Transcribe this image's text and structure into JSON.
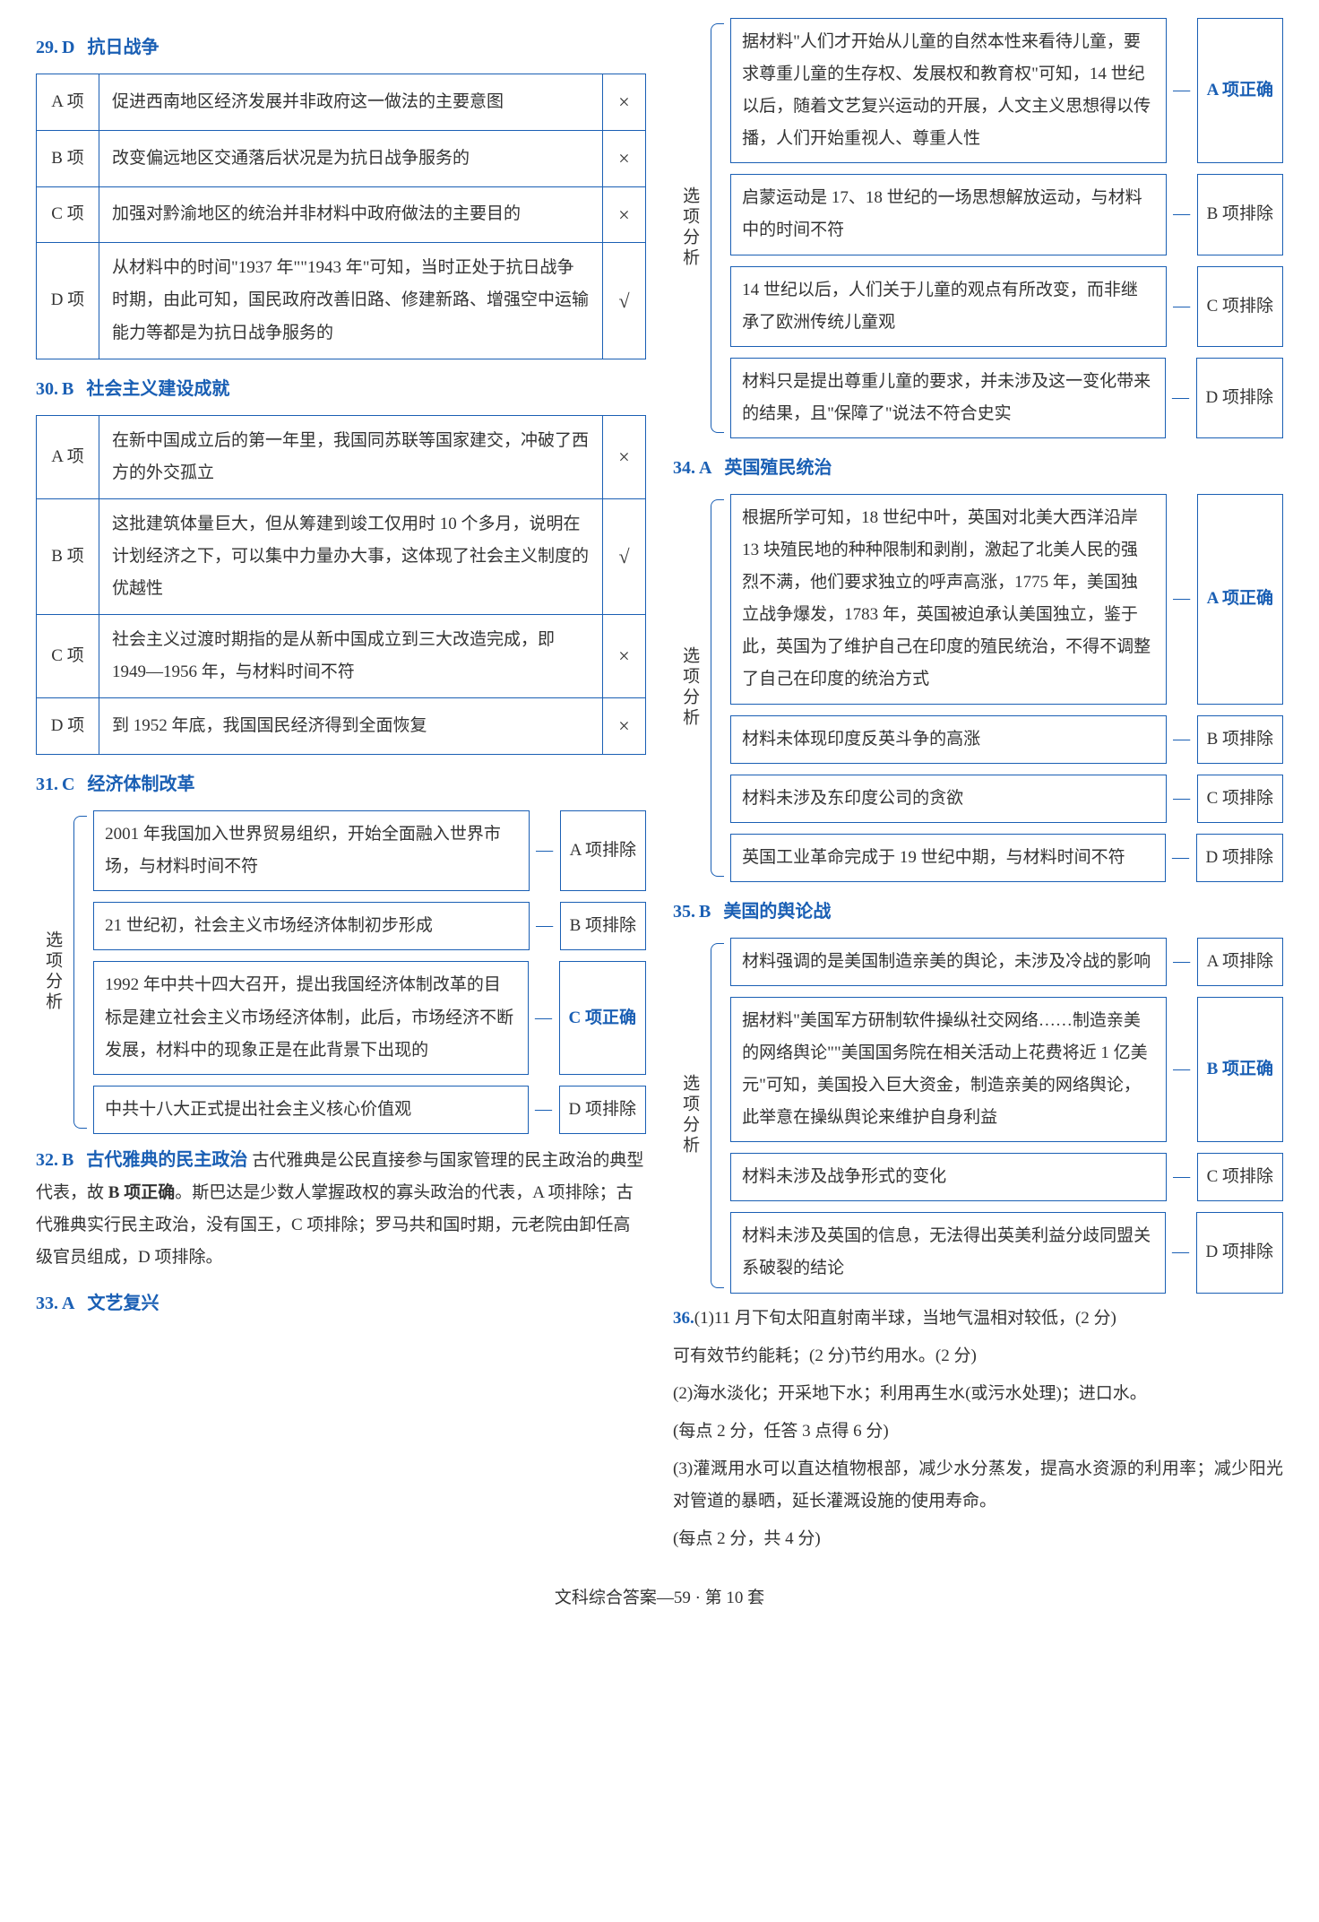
{
  "colors": {
    "accent": "#1a5fb4",
    "text": "#333333",
    "bg": "#ffffff",
    "border": "#1a5fb4"
  },
  "labels": {
    "option_analysis": "选项分析",
    "tag_correct_suffix": "项正确",
    "tag_exclude_suffix": "项排除",
    "dash": "—"
  },
  "left": {
    "q29": {
      "head_num": "29.",
      "head_ans": "D",
      "head_title": "抗日战争",
      "rows": [
        {
          "label": "A 项",
          "text": "促进西南地区经济发展并非政府这一做法的主要意图",
          "mark": "×"
        },
        {
          "label": "B 项",
          "text": "改变偏远地区交通落后状况是为抗日战争服务的",
          "mark": "×"
        },
        {
          "label": "C 项",
          "text": "加强对黔渝地区的统治并非材料中政府做法的主要目的",
          "mark": "×"
        },
        {
          "label": "D 项",
          "text": "从材料中的时间\"1937 年\"\"1943 年\"可知，当时正处于抗日战争时期，由此可知，国民政府改善旧路、修建新路、增强空中运输能力等都是为抗日战争服务的",
          "mark": "√"
        }
      ]
    },
    "q30": {
      "head_num": "30.",
      "head_ans": "B",
      "head_title": "社会主义建设成就",
      "rows": [
        {
          "label": "A 项",
          "text": "在新中国成立后的第一年里，我国同苏联等国家建交，冲破了西方的外交孤立",
          "mark": "×"
        },
        {
          "label": "B 项",
          "text": "这批建筑体量巨大，但从筹建到竣工仅用时 10 个多月，说明在计划经济之下，可以集中力量办大事，这体现了社会主义制度的优越性",
          "mark": "√"
        },
        {
          "label": "C 项",
          "text": "社会主义过渡时期指的是从新中国成立到三大改造完成，即 1949—1956 年，与材料时间不符",
          "mark": "×"
        },
        {
          "label": "D 项",
          "text": "到 1952 年底，我国国民经济得到全面恢复",
          "mark": "×"
        }
      ]
    },
    "q31": {
      "head_num": "31.",
      "head_ans": "C",
      "head_title": "经济体制改革",
      "items": [
        {
          "text": "2001 年我国加入世界贸易组织，开始全面融入世界市场，与材料时间不符",
          "tag": "A",
          "kind": "exclude"
        },
        {
          "text": "21 世纪初，社会主义市场经济体制初步形成",
          "tag": "B",
          "kind": "exclude"
        },
        {
          "text": "1992 年中共十四大召开，提出我国经济体制改革的目标是建立社会主义市场经济体制，此后，市场经济不断发展，材料中的现象正是在此背景下出现的",
          "tag": "C",
          "kind": "correct"
        },
        {
          "text": "中共十八大正式提出社会主义核心价值观",
          "tag": "D",
          "kind": "exclude"
        }
      ]
    },
    "q32": {
      "head_num": "32.",
      "head_ans": "B",
      "head_title": "古代雅典的民主政治",
      "body_pre": "古代雅典是公民直接参与国家管理的民主政治的典型代表，故 ",
      "body_bold": "B 项正确",
      "body_post": "。斯巴达是少数人掌握政权的寡头政治的代表，A 项排除；古代雅典实行民主政治，没有国王，C 项排除；罗马共和国时期，元老院由卸任高级官员组成，D 项排除。"
    },
    "q33": {
      "head_num": "33.",
      "head_ans": "A",
      "head_title": "文艺复兴"
    }
  },
  "right": {
    "q33": {
      "items": [
        {
          "text": "据材料\"人们才开始从儿童的自然本性来看待儿童，要求尊重儿童的生存权、发展权和教育权\"可知，14 世纪以后，随着文艺复兴运动的开展，人文主义思想得以传播，人们开始重视人、尊重人性",
          "tag": "A",
          "kind": "correct"
        },
        {
          "text": "启蒙运动是 17、18 世纪的一场思想解放运动，与材料中的时间不符",
          "tag": "B",
          "kind": "exclude"
        },
        {
          "text": "14 世纪以后，人们关于儿童的观点有所改变，而非继承了欧洲传统儿童观",
          "tag": "C",
          "kind": "exclude"
        },
        {
          "text": "材料只是提出尊重儿童的要求，并未涉及这一变化带来的结果，且\"保障了\"说法不符合史实",
          "tag": "D",
          "kind": "exclude"
        }
      ]
    },
    "q34": {
      "head_num": "34.",
      "head_ans": "A",
      "head_title": "英国殖民统治",
      "items": [
        {
          "text": "根据所学可知，18 世纪中叶，英国对北美大西洋沿岸 13 块殖民地的种种限制和剥削，激起了北美人民的强烈不满，他们要求独立的呼声高涨，1775 年，美国独立战争爆发，1783 年，英国被迫承认美国独立，鉴于此，英国为了维护自己在印度的殖民统治，不得不调整了自己在印度的统治方式",
          "tag": "A",
          "kind": "correct"
        },
        {
          "text": "材料未体现印度反英斗争的高涨",
          "tag": "B",
          "kind": "exclude"
        },
        {
          "text": "材料未涉及东印度公司的贪欲",
          "tag": "C",
          "kind": "exclude"
        },
        {
          "text": "英国工业革命完成于 19 世纪中期，与材料时间不符",
          "tag": "D",
          "kind": "exclude"
        }
      ]
    },
    "q35": {
      "head_num": "35.",
      "head_ans": "B",
      "head_title": "美国的舆论战",
      "items": [
        {
          "text": "材料强调的是美国制造亲美的舆论，未涉及冷战的影响",
          "tag": "A",
          "kind": "exclude"
        },
        {
          "text": "据材料\"美国军方研制软件操纵社交网络……制造亲美的网络舆论\"\"美国国务院在相关活动上花费将近 1 亿美元\"可知，美国投入巨大资金，制造亲美的网络舆论，此举意在操纵舆论来维护自身利益",
          "tag": "B",
          "kind": "correct"
        },
        {
          "text": "材料未涉及战争形式的变化",
          "tag": "C",
          "kind": "exclude"
        },
        {
          "text": "材料未涉及英国的信息，无法得出英美利益分歧同盟关系破裂的结论",
          "tag": "D",
          "kind": "exclude"
        }
      ]
    },
    "q36": {
      "head": "36.",
      "p1a": "(1)11 月下旬太阳直射南半球，当地气温相对较低，(2 分)",
      "p1b": "可有效节约能耗；(2 分)节约用水。(2 分)",
      "p2a": "(2)海水淡化；开采地下水；利用再生水(或污水处理)；进口水。",
      "p2b": "(每点 2 分，任答 3 点得 6 分)",
      "p3a": "(3)灌溉用水可以直达植物根部，减少水分蒸发，提高水资源的利用率；减少阳光对管道的暴晒，延长灌溉设施的使用寿命。",
      "p3b": "(每点 2 分，共 4 分)"
    }
  },
  "footer": "文科综合答案—59 · 第 10 套"
}
